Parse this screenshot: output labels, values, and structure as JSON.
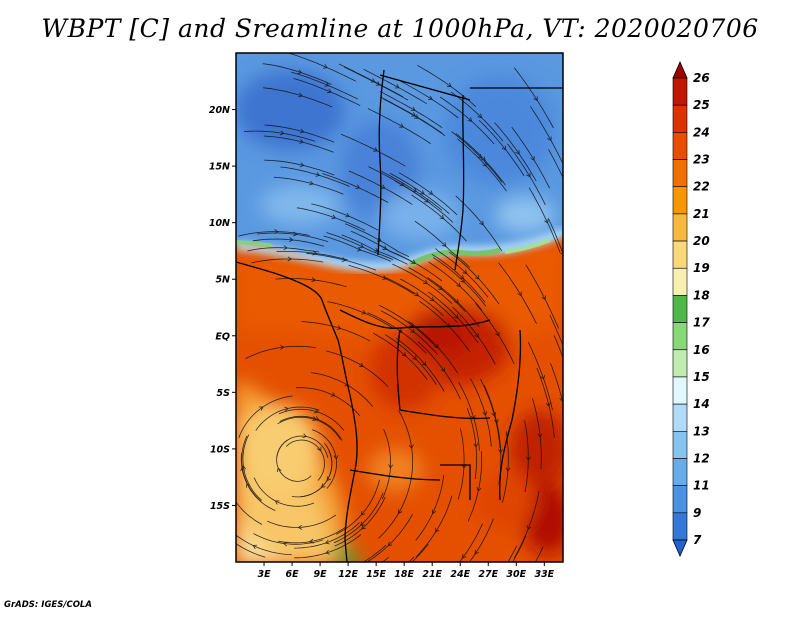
{
  "title": "WBPT [C] and Sreamline at 1000hPa, VT: 2020020706",
  "footer": "GrADS: IGES/COLA",
  "map": {
    "lon_range": [
      0,
      35
    ],
    "lat_range": [
      -20,
      25
    ],
    "x_ticks": [
      "3E",
      "6E",
      "9E",
      "12E",
      "15E",
      "18E",
      "21E",
      "24E",
      "27E",
      "30E",
      "33E"
    ],
    "x_tick_values": [
      3,
      6,
      9,
      12,
      15,
      18,
      21,
      24,
      27,
      30,
      33
    ],
    "y_ticks": [
      "20N",
      "15N",
      "10N",
      "5N",
      "EQ",
      "5S",
      "10S",
      "15S"
    ],
    "y_tick_values": [
      20,
      15,
      10,
      5,
      0,
      -5,
      -10,
      -15
    ],
    "fill_variable": "WBPT [C]",
    "overlay": "streamlines at 1000hPa"
  },
  "colorbar": {
    "labels": [
      "26",
      "25",
      "24",
      "23",
      "22",
      "21",
      "20",
      "19",
      "18",
      "17",
      "16",
      "15",
      "14",
      "13",
      "12",
      "11",
      "9",
      "7"
    ],
    "colors": [
      "#a00000",
      "#c01800",
      "#dc3200",
      "#e84e00",
      "#f07000",
      "#f89600",
      "#f8b840",
      "#f8d878",
      "#f8f0b0",
      "#50b848",
      "#88d878",
      "#c0ecb0",
      "#e0f8ff",
      "#b0dcf8",
      "#88c4f0",
      "#68acea",
      "#4c92e2",
      "#3478d8",
      "#2062d0"
    ]
  }
}
